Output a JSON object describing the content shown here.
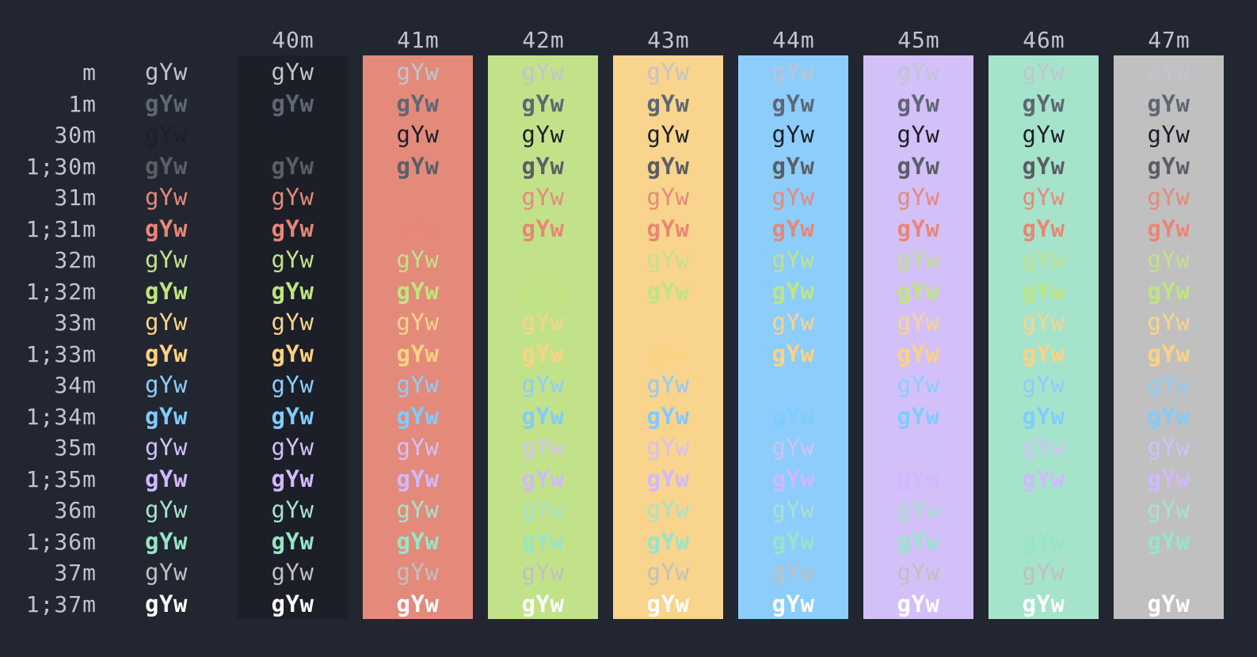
{
  "sample_text": "gYw",
  "headers": [
    "40m",
    "41m",
    "42m",
    "43m",
    "44m",
    "45m",
    "46m",
    "47m"
  ],
  "row_labels": [
    "m",
    "1m",
    "30m",
    "1;30m",
    "31m",
    "1;31m",
    "32m",
    "1;32m",
    "33m",
    "1;33m",
    "34m",
    "1;34m",
    "35m",
    "1;35m",
    "36m",
    "1;36m",
    "37m",
    "1;37m"
  ],
  "colors": {
    "terminal_bg": "#222631",
    "default_fg": "#c0c4cf",
    "backgrounds": [
      "#1c1f28",
      "#e38a7b",
      "#c2e28a",
      "#f9d48c",
      "#8ccdfb",
      "#d3c0f9",
      "#a6e3cb",
      "#c0c0c0"
    ],
    "fg_normal": [
      "#1c1f28",
      "#e38a7b",
      "#c2e28a",
      "#f9d48c",
      "#8ccdfb",
      "#d3c0f9",
      "#a6e3cb",
      "#c0c0c0"
    ],
    "fg_bright": [
      "#5b5e66",
      "#e98676",
      "#bfe67e",
      "#fdd281",
      "#80ccfe",
      "#d1b8ff",
      "#97e5c8",
      "#ffffff"
    ],
    "dim_gray": "#5f6674"
  }
}
